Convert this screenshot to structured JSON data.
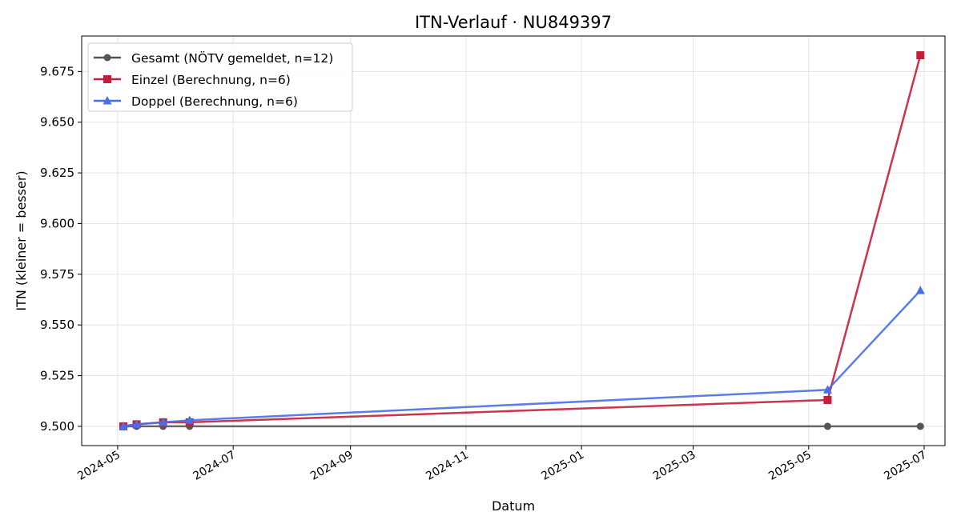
{
  "chart_data": {
    "type": "line",
    "title": "ITN-Verlauf · NU849397",
    "xlabel": "Datum",
    "ylabel": "ITN  (kleiner = besser)",
    "xlim": [
      "2024-04-12",
      "2025-07-12"
    ],
    "ylim": [
      9.4905,
      9.6925
    ],
    "x_ticks": [
      "2024-05",
      "2024-07",
      "2024-09",
      "2024-11",
      "2025-01",
      "2025-03",
      "2025-05",
      "2025-07"
    ],
    "y_ticks": [
      "9.500",
      "9.525",
      "9.550",
      "9.575",
      "9.600",
      "9.625",
      "9.650",
      "9.675"
    ],
    "grid": true,
    "legend_position": "top-left",
    "series": [
      {
        "name": "Gesamt (NÖTV gemeldet, n=12)",
        "color": "#555555",
        "marker": "circle",
        "points": [
          {
            "x": "2024-05-04",
            "y": 9.5
          },
          {
            "x": "2024-05-11",
            "y": 9.5
          },
          {
            "x": "2024-05-25",
            "y": 9.5
          },
          {
            "x": "2024-06-08",
            "y": 9.5
          },
          {
            "x": "2025-05-11",
            "y": 9.5
          },
          {
            "x": "2025-06-29",
            "y": 9.5
          }
        ]
      },
      {
        "name": "Einzel (Berechnung, n=6)",
        "color": "#c41e3a",
        "marker": "square",
        "points": [
          {
            "x": "2024-05-04",
            "y": 9.5
          },
          {
            "x": "2024-05-11",
            "y": 9.501
          },
          {
            "x": "2024-05-25",
            "y": 9.502
          },
          {
            "x": "2024-06-08",
            "y": 9.502
          },
          {
            "x": "2025-05-11",
            "y": 9.513
          },
          {
            "x": "2025-06-29",
            "y": 9.683
          }
        ]
      },
      {
        "name": "Doppel (Berechnung, n=6)",
        "color": "#4a6ee8",
        "marker": "triangle",
        "points": [
          {
            "x": "2024-05-04",
            "y": 9.5
          },
          {
            "x": "2024-05-11",
            "y": 9.501
          },
          {
            "x": "2024-05-25",
            "y": 9.502
          },
          {
            "x": "2024-06-08",
            "y": 9.503
          },
          {
            "x": "2025-05-11",
            "y": 9.518
          },
          {
            "x": "2025-06-29",
            "y": 9.567
          }
        ]
      }
    ]
  }
}
